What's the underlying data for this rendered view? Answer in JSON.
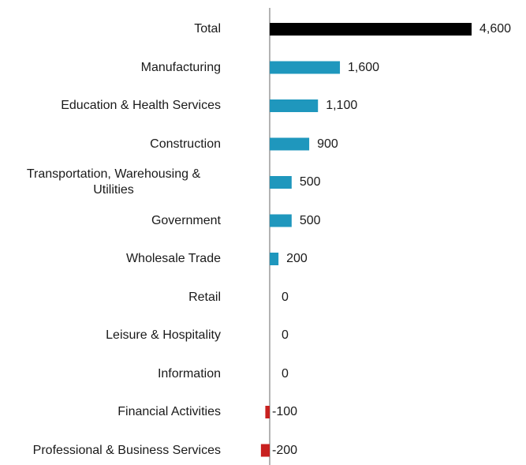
{
  "chart_data": {
    "type": "bar",
    "orientation": "horizontal",
    "categories": [
      "Total",
      "Manufacturing",
      "Education & Health Services",
      "Construction",
      "Transportation, Warehousing & Utilities",
      "Government",
      "Wholesale Trade",
      "Retail",
      "Leisure & Hospitality",
      "Information",
      "Financial Activities",
      "Professional & Business Services"
    ],
    "values": [
      4600,
      1600,
      1100,
      900,
      500,
      500,
      200,
      0,
      0,
      0,
      -100,
      -200
    ],
    "value_labels": [
      "4,600",
      "1,600",
      "1,100",
      "900",
      "500",
      "500",
      "200",
      "0",
      "0",
      "0",
      "-100",
      "-200"
    ],
    "colors": [
      "#000000",
      "#1f97bd",
      "#1f97bd",
      "#1f97bd",
      "#1f97bd",
      "#1f97bd",
      "#1f97bd",
      "#1f97bd",
      "#1f97bd",
      "#1f97bd",
      "#c8201f",
      "#c8201f"
    ]
  }
}
